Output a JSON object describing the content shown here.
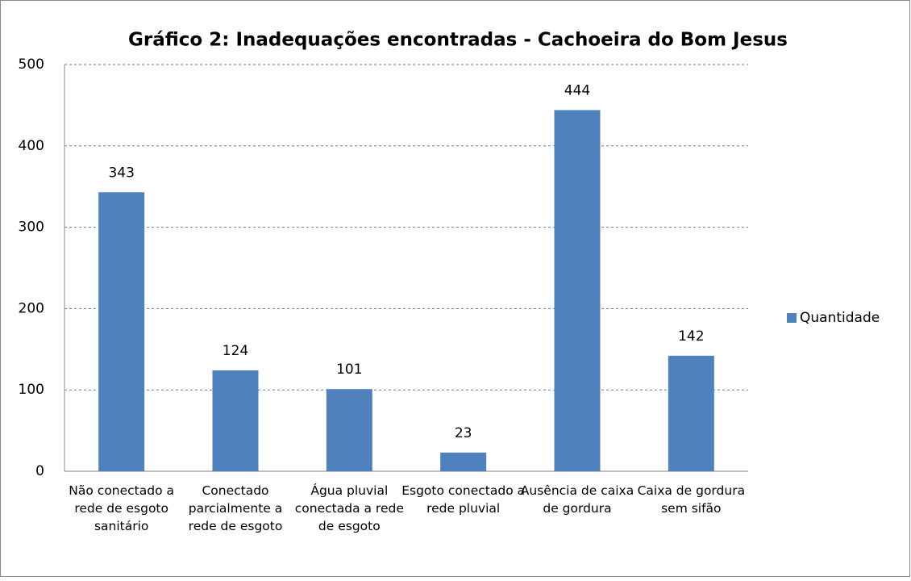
{
  "chart_data": {
    "type": "bar",
    "title": "Gráfico 2: Inadequações encontradas - Cachoeira do Bom Jesus",
    "categories": [
      "Não conectado a rede de esgoto sanitário",
      "Conectado parcialmente a rede de esgoto",
      "Água pluvial conectada a rede de esgoto",
      "Esgoto conectado a rede pluvial",
      "Ausência de caixa de gordura",
      "Caixa de gordura sem sifão"
    ],
    "series": [
      {
        "name": "Quantidade",
        "color": "#4f81bd",
        "values": [
          343,
          124,
          101,
          23,
          444,
          142
        ]
      }
    ],
    "ylim": [
      0,
      500
    ],
    "yticks": [
      0,
      100,
      200,
      300,
      400,
      500
    ],
    "grid": true,
    "legend": "right"
  }
}
